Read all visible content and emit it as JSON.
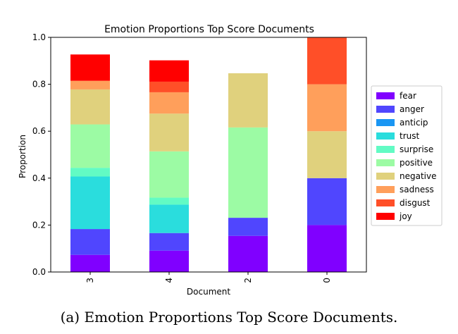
{
  "caption": "(a) Emotion Proportions Top Score Documents.",
  "chart_data": {
    "type": "bar",
    "stacked": true,
    "title": "Emotion Proportions Top Score Documents",
    "xlabel": "Document",
    "ylabel": "Proportion",
    "categories": [
      "3",
      "4",
      "2",
      "0"
    ],
    "ylim": [
      0,
      1.0
    ],
    "yticks": [
      "0.0",
      "0.2",
      "0.4",
      "0.6",
      "0.8",
      "1.0"
    ],
    "grid": false,
    "legend_position": "right",
    "series": [
      {
        "name": "fear",
        "color": "#8000ff",
        "values": [
          0.073,
          0.091,
          0.154,
          0.2
        ]
      },
      {
        "name": "anger",
        "color": "#5046fe",
        "values": [
          0.11,
          0.075,
          0.077,
          0.2
        ]
      },
      {
        "name": "anticip",
        "color": "#1996f3",
        "values": [
          0.0,
          0.0,
          0.0,
          0.0
        ]
      },
      {
        "name": "trust",
        "color": "#2adddd",
        "values": [
          0.224,
          0.121,
          0.0,
          0.0
        ]
      },
      {
        "name": "surprise",
        "color": "#62fbc4",
        "values": [
          0.037,
          0.03,
          0.0,
          0.0
        ]
      },
      {
        "name": "positive",
        "color": "#9cfba4",
        "values": [
          0.185,
          0.197,
          0.385,
          0.0
        ]
      },
      {
        "name": "negative",
        "color": "#e0d17d",
        "values": [
          0.149,
          0.161,
          0.231,
          0.2
        ]
      },
      {
        "name": "sadness",
        "color": "#ff9f5b",
        "values": [
          0.037,
          0.091,
          0.0,
          0.2
        ]
      },
      {
        "name": "disgust",
        "color": "#ff4f28",
        "values": [
          0.0,
          0.045,
          0.0,
          0.2
        ]
      },
      {
        "name": "joy",
        "color": "#ff0000",
        "values": [
          0.112,
          0.091,
          0.0,
          0.0
        ]
      }
    ]
  }
}
